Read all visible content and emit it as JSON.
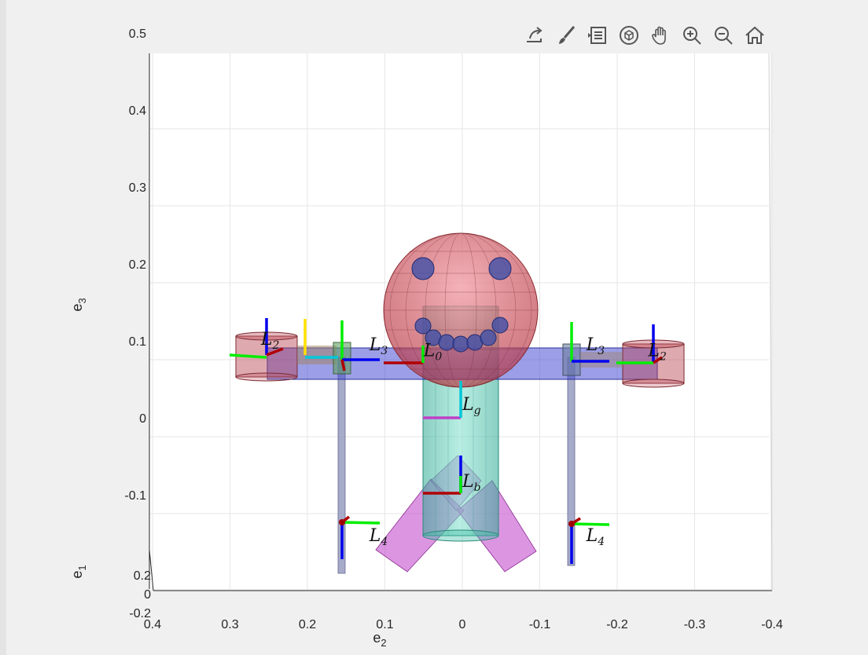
{
  "toolbar": {
    "icons": [
      "export-icon",
      "brush-icon",
      "legend-icon",
      "rotate-3d-icon",
      "pan-hand-icon",
      "zoom-in-icon",
      "zoom-out-icon",
      "home-icon"
    ]
  },
  "colors": {
    "torso": "#3dbfa6",
    "head": "#c0404a",
    "shoulder_bar": "#3a40d0",
    "limb": "#8a8fb8",
    "legs": "#c040c8",
    "frame_red": "#b00000",
    "frame_green": "#00ee00",
    "frame_blue": "#0000ee"
  },
  "chart_data": {
    "type": "3d-surface",
    "title": "",
    "xlabel": "e2",
    "ylabel": "e3",
    "zlabel": "e1",
    "x_ticks": [
      "0.4",
      "0.3",
      "0.2",
      "0.1",
      "0",
      "-0.1",
      "-0.2",
      "-0.3",
      "-0.4"
    ],
    "y_ticks": [
      "0.5",
      "0.4",
      "0.3",
      "0.2",
      "0.1",
      "0",
      "-0.1"
    ],
    "z_ticks": [
      "0.2",
      "0",
      "-0.2"
    ],
    "xlim": [
      0.4,
      -0.4
    ],
    "ylim": [
      -0.2,
      0.5
    ],
    "grid": true,
    "labels": [
      {
        "base": "L",
        "sub": "0",
        "x": 0.05,
        "y": 0.08
      },
      {
        "base": "L",
        "sub": "g",
        "x": 0.0,
        "y": 0.01
      },
      {
        "base": "L",
        "sub": "b",
        "x": 0.0,
        "y": -0.09
      },
      {
        "base": "L",
        "sub": "2",
        "x": 0.26,
        "y": 0.095
      },
      {
        "base": "L",
        "sub": "3",
        "x": 0.12,
        "y": 0.088
      },
      {
        "base": "L",
        "sub": "4",
        "x": 0.12,
        "y": -0.16
      },
      {
        "base": "L",
        "sub": "2",
        "x": -0.24,
        "y": 0.08
      },
      {
        "base": "L",
        "sub": "3",
        "x": -0.16,
        "y": 0.088
      },
      {
        "base": "L",
        "sub": "4",
        "x": -0.16,
        "y": -0.16
      }
    ]
  }
}
